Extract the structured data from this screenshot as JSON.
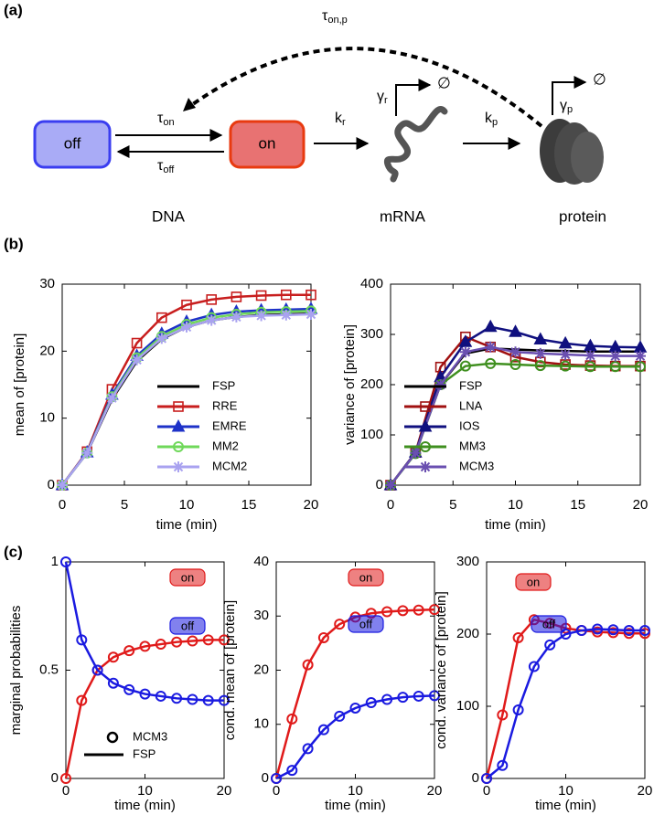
{
  "panel_labels": [
    "(a)",
    "(b)",
    "(c)"
  ],
  "diagram": {
    "off_label": "off",
    "on_label": "on",
    "tau_on": {
      "symbol": "τ",
      "sub": "on"
    },
    "tau_off": {
      "symbol": "τ",
      "sub": "off"
    },
    "k_r": {
      "symbol": "k",
      "sub": "r"
    },
    "k_p": {
      "symbol": "k",
      "sub": "p"
    },
    "gamma_r": {
      "symbol": "γ",
      "sub": "r"
    },
    "gamma_p": {
      "symbol": "γ",
      "sub": "p"
    },
    "tau_on_p": {
      "symbol": "τ",
      "sub": "on,p"
    },
    "degradation": "∅",
    "captions": [
      "DNA",
      "mRNA",
      "protein"
    ]
  },
  "chart_data": [
    {
      "type": "line",
      "xlabel": "time (min)",
      "ylabel": "mean of [protein]",
      "x": [
        0,
        2,
        4,
        6,
        8,
        10,
        12,
        14,
        16,
        18,
        20
      ],
      "xlim": [
        0,
        20
      ],
      "xticks": [
        0,
        5,
        10,
        15,
        20
      ],
      "ylim": [
        0,
        30
      ],
      "yticks": [
        0,
        10,
        20,
        30
      ],
      "legend": "lower right",
      "series": [
        {
          "name": "FSP",
          "color": "#000000",
          "marker": null,
          "values": [
            0,
            4.8,
            12.8,
            18.5,
            21.8,
            23.6,
            24.6,
            25.1,
            25.4,
            25.5,
            25.6
          ]
        },
        {
          "name": "RRE",
          "color": "#c81e1e",
          "marker": "square",
          "values": [
            0,
            5,
            14.3,
            21.2,
            25,
            26.9,
            27.7,
            28.1,
            28.3,
            28.4,
            28.4
          ]
        },
        {
          "name": "EMRE",
          "color": "#1e32c8",
          "marker": "triangle",
          "values": [
            0,
            4.9,
            13.5,
            19.3,
            22.6,
            24.4,
            25.4,
            25.9,
            26.1,
            26.2,
            26.3
          ]
        },
        {
          "name": "MM2",
          "color": "#6fd85a",
          "marker": "circle",
          "values": [
            0,
            4.8,
            13.2,
            19,
            22.2,
            24,
            25,
            25.5,
            25.8,
            25.9,
            26
          ]
        },
        {
          "name": "MCM2",
          "color": "#a9a2f0",
          "marker": "asterisk",
          "values": [
            0,
            4.8,
            13,
            18.7,
            21.9,
            23.6,
            24.6,
            25.1,
            25.3,
            25.4,
            25.5
          ]
        }
      ]
    },
    {
      "type": "line",
      "xlabel": "time (min)",
      "ylabel": "variance of [protein]",
      "x": [
        0,
        2,
        4,
        6,
        8,
        10,
        12,
        14,
        16,
        18,
        20
      ],
      "xlim": [
        0,
        20
      ],
      "xticks": [
        0,
        5,
        10,
        15,
        20
      ],
      "ylim": [
        0,
        400
      ],
      "yticks": [
        0,
        100,
        200,
        300,
        400
      ],
      "legend": "lower left",
      "series": [
        {
          "name": "FSP",
          "color": "#000000",
          "marker": null,
          "values": [
            0,
            65,
            200,
            262,
            272,
            270,
            268,
            267,
            266,
            266,
            266
          ]
        },
        {
          "name": "LNA",
          "color": "#a01010",
          "marker": "square",
          "values": [
            0,
            65,
            235,
            295,
            275,
            255,
            245,
            240,
            238,
            237,
            237
          ]
        },
        {
          "name": "IOS",
          "color": "#10107f",
          "marker": "triangle",
          "values": [
            0,
            65,
            215,
            285,
            315,
            305,
            290,
            282,
            277,
            275,
            274
          ]
        },
        {
          "name": "MM3",
          "color": "#3f8f1f",
          "marker": "circle",
          "values": [
            0,
            63,
            200,
            237,
            242,
            240,
            238,
            237,
            236,
            236,
            236
          ]
        },
        {
          "name": "MCM3",
          "color": "#6a4fb0",
          "marker": "asterisk",
          "values": [
            0,
            64,
            200,
            265,
            275,
            265,
            262,
            260,
            258,
            257,
            257
          ]
        }
      ]
    },
    {
      "type": "line",
      "xlabel": "time (min)",
      "ylabel": "marginal probabilities",
      "x": [
        0,
        2,
        4,
        6,
        8,
        10,
        12,
        14,
        16,
        18,
        20
      ],
      "xlim": [
        0,
        20
      ],
      "xticks": [
        0,
        10,
        20
      ],
      "ylim": [
        0,
        1
      ],
      "yticks": [
        0,
        0.5,
        1
      ],
      "legend": "badges",
      "legend_items": [
        {
          "label": "MCM3",
          "marker": "circle"
        },
        {
          "label": "FSP",
          "marker": "line"
        }
      ],
      "series": [
        {
          "name": "on",
          "color": "#e01a1a",
          "marker": "circle",
          "values": [
            0,
            0.36,
            0.5,
            0.56,
            0.59,
            0.61,
            0.62,
            0.63,
            0.635,
            0.64,
            0.64
          ]
        },
        {
          "name": "off",
          "color": "#1a1ae0",
          "marker": "circle",
          "values": [
            1,
            0.64,
            0.5,
            0.44,
            0.41,
            0.39,
            0.38,
            0.37,
            0.365,
            0.36,
            0.36
          ]
        }
      ]
    },
    {
      "type": "line",
      "xlabel": "time (min)",
      "ylabel": "cond. mean of [protein]",
      "x": [
        0,
        2,
        4,
        6,
        8,
        10,
        12,
        14,
        16,
        18,
        20
      ],
      "xlim": [
        0,
        20
      ],
      "xticks": [
        0,
        10,
        20
      ],
      "ylim": [
        0,
        40
      ],
      "yticks": [
        0,
        10,
        20,
        30,
        40
      ],
      "legend": "badges",
      "series": [
        {
          "name": "on",
          "color": "#e01a1a",
          "marker": "circle",
          "values": [
            0,
            11,
            21,
            26,
            28.5,
            29.8,
            30.5,
            30.8,
            31,
            31.1,
            31.2
          ]
        },
        {
          "name": "off",
          "color": "#1a1ae0",
          "marker": "circle",
          "values": [
            0,
            1.5,
            5.5,
            9,
            11.5,
            13,
            14,
            14.6,
            15,
            15.2,
            15.3
          ]
        }
      ]
    },
    {
      "type": "line",
      "xlabel": "time (min)",
      "ylabel": "cond. variance of [protein]",
      "x": [
        0,
        2,
        4,
        6,
        8,
        10,
        12,
        14,
        16,
        18,
        20
      ],
      "xlim": [
        0,
        20
      ],
      "xticks": [
        0,
        10,
        20
      ],
      "ylim": [
        0,
        300
      ],
      "yticks": [
        0,
        100,
        200,
        300
      ],
      "legend": "badges",
      "series": [
        {
          "name": "on",
          "color": "#e01a1a",
          "marker": "circle",
          "values": [
            0,
            88,
            195,
            220,
            215,
            208,
            205,
            203,
            202,
            201,
            201
          ]
        },
        {
          "name": "off",
          "color": "#1a1ae0",
          "marker": "circle",
          "values": [
            0,
            18,
            95,
            155,
            185,
            200,
            205,
            207,
            206,
            205,
            205
          ]
        }
      ]
    }
  ]
}
